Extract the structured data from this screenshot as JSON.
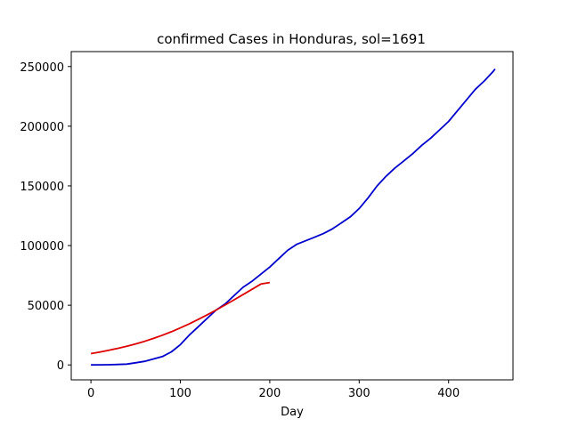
{
  "chart_data": {
    "type": "line",
    "title": "confirmed Cases in Honduras, sol=1691",
    "xlabel": "Day",
    "ylabel": "",
    "xlim": [
      -22,
      472
    ],
    "ylim": [
      -12500,
      262500
    ],
    "x_ticks": [
      0,
      100,
      200,
      300,
      400
    ],
    "y_ticks": [
      0,
      50000,
      100000,
      150000,
      200000,
      250000
    ],
    "grid": false,
    "series": [
      {
        "color": "#0000cc",
        "points": [
          [
            0,
            0
          ],
          [
            10,
            100
          ],
          [
            20,
            200
          ],
          [
            30,
            400
          ],
          [
            40,
            700
          ],
          [
            50,
            1800
          ],
          [
            60,
            3000
          ],
          [
            70,
            5000
          ],
          [
            80,
            7000
          ],
          [
            90,
            11000
          ],
          [
            100,
            17000
          ],
          [
            110,
            25000
          ],
          [
            120,
            32000
          ],
          [
            130,
            39000
          ],
          [
            140,
            46000
          ],
          [
            150,
            51000
          ],
          [
            160,
            58000
          ],
          [
            170,
            65000
          ],
          [
            180,
            70000
          ],
          [
            190,
            76000
          ],
          [
            200,
            82000
          ],
          [
            210,
            89000
          ],
          [
            220,
            96000
          ],
          [
            230,
            101000
          ],
          [
            240,
            104000
          ],
          [
            250,
            107000
          ],
          [
            260,
            110000
          ],
          [
            270,
            114000
          ],
          [
            280,
            119000
          ],
          [
            290,
            124000
          ],
          [
            300,
            131000
          ],
          [
            310,
            140000
          ],
          [
            320,
            150000
          ],
          [
            330,
            158000
          ],
          [
            340,
            165000
          ],
          [
            350,
            171000
          ],
          [
            360,
            177000
          ],
          [
            370,
            184000
          ],
          [
            380,
            190000
          ],
          [
            390,
            197000
          ],
          [
            400,
            204000
          ],
          [
            410,
            213000
          ],
          [
            420,
            222000
          ],
          [
            430,
            231000
          ],
          [
            440,
            238000
          ],
          [
            450,
            246000
          ],
          [
            452,
            248000
          ]
        ]
      },
      {
        "color": "#dd0000",
        "points": [
          [
            0,
            9500
          ],
          [
            10,
            10800
          ],
          [
            20,
            12300
          ],
          [
            30,
            13900
          ],
          [
            40,
            15700
          ],
          [
            50,
            17600
          ],
          [
            60,
            19800
          ],
          [
            70,
            22200
          ],
          [
            80,
            24900
          ],
          [
            90,
            27800
          ],
          [
            100,
            31000
          ],
          [
            110,
            34400
          ],
          [
            120,
            38100
          ],
          [
            130,
            42000
          ],
          [
            140,
            46000
          ],
          [
            150,
            50200
          ],
          [
            160,
            54500
          ],
          [
            170,
            58900
          ],
          [
            180,
            63300
          ],
          [
            190,
            67800
          ],
          [
            200,
            69000
          ]
        ]
      }
    ]
  }
}
